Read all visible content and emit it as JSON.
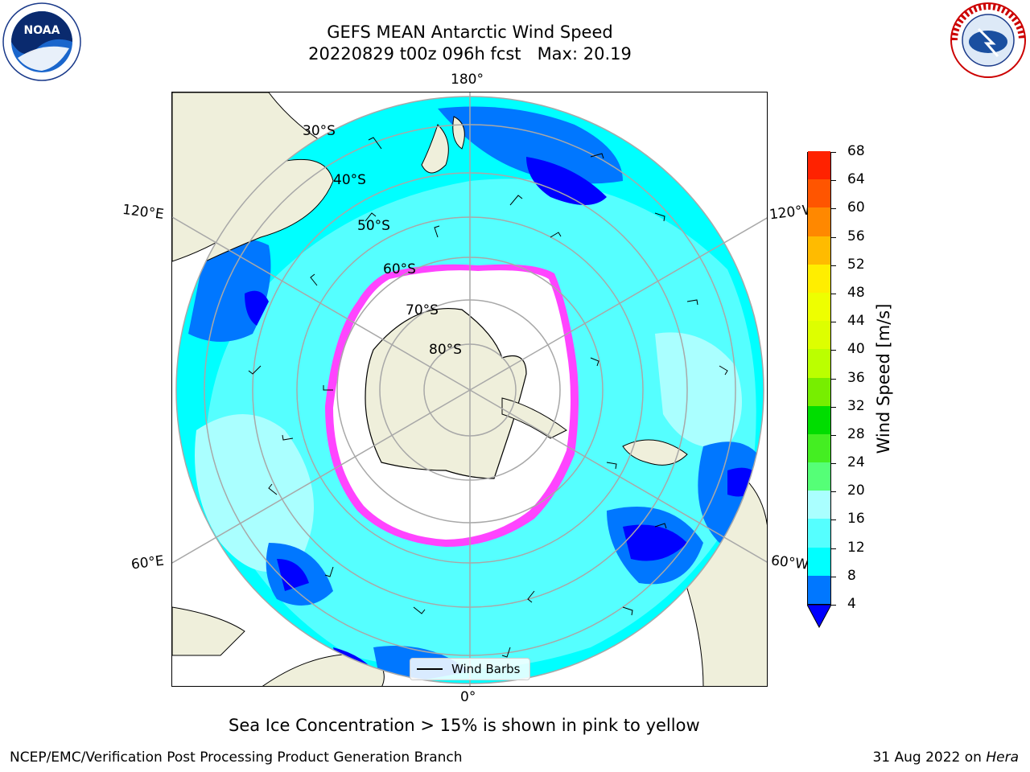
{
  "header": {
    "title_line1": "GEFS MEAN Antarctic Wind Speed",
    "title_line2": "20220829 t00z 096h fcst   Max: 20.19"
  },
  "logos": {
    "left": "noaa-logo",
    "left_text": "NOAA",
    "right": "nws-logo"
  },
  "map": {
    "longitude_labels": {
      "top": "180°",
      "bottom": "0°",
      "upper_left": "120°E",
      "upper_right": "120°W",
      "lower_left": "60°E",
      "lower_right": "60°W"
    },
    "latitude_labels": [
      "30°S",
      "40°S",
      "50°S",
      "60°S",
      "70°S",
      "80°S"
    ],
    "legend": {
      "label": "Wind Barbs"
    },
    "max_wind_speed": 20.19
  },
  "colorbar": {
    "label": "Wind Speed [m/s]",
    "ticks": [
      "4",
      "8",
      "12",
      "16",
      "20",
      "24",
      "28",
      "32",
      "36",
      "40",
      "44",
      "48",
      "52",
      "56",
      "60",
      "64",
      "68"
    ],
    "colors": [
      "#0077ff",
      "#00ffff",
      "#55ffff",
      "#aaffff",
      "#55ff77",
      "#44ee22",
      "#00dd00",
      "#77ee00",
      "#bbff00",
      "#ddff00",
      "#eeff00",
      "#ffee00",
      "#ffbb00",
      "#ff8800",
      "#ff5500",
      "#ff2200"
    ],
    "extend_color": "#0000ff"
  },
  "footer": {
    "subtitle": "Sea Ice Concentration > 15% is shown in pink to yellow",
    "left": "NCEP/EMC/Verification Post Processing Product Generation Branch",
    "right_date": "31 Aug 2022 on ",
    "right_machine": "Hera"
  }
}
